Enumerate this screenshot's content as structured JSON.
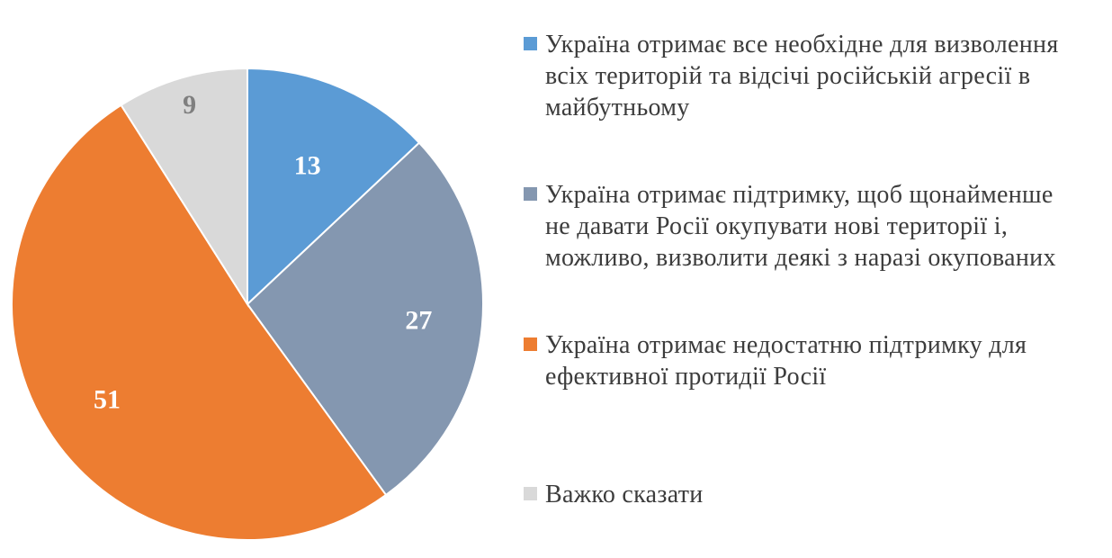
{
  "chart_data": {
    "type": "pie",
    "title": "",
    "slices": [
      {
        "label": "Україна отримає все необхідне для визволення всіх територій та відсічі російській агресії в майбутньому",
        "value": 13,
        "color": "#5b9bd5",
        "label_color": "#ffffff"
      },
      {
        "label": "Україна отримає підтримку, щоб щонайменше не давати Росії окупувати нові території і, можливо, визволити деякі з наразі окупованих",
        "value": 27,
        "color": "#8497b0",
        "label_color": "#ffffff"
      },
      {
        "label": "Україна отримає недостатню підтримку для ефективної протидії Росії",
        "value": 51,
        "color": "#ed7d31",
        "label_color": "#ffffff"
      },
      {
        "label": "Важко сказати",
        "value": 9,
        "color": "#d9d9d9",
        "label_color": "#7f7f7f"
      }
    ],
    "start_angle": "12 o'clock",
    "direction": "clockwise",
    "legend_position": "right"
  }
}
